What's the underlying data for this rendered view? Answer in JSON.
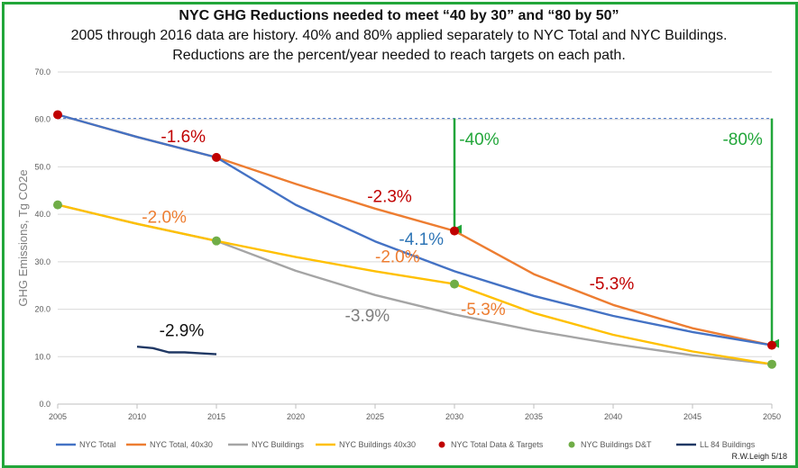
{
  "chart_data": {
    "type": "line",
    "title": "NYC GHG Reductions needed to meet “40 by 30” and “80 by 50”",
    "subtitle_lines": [
      "2005 through 2016 data are history. 40% and 80% applied separately to NYC Total and NYC Buildings.",
      "Reductions are the percent/year needed to reach targets on each path."
    ],
    "xlabel": "",
    "ylabel": "GHG Emissions, Tg CO2e",
    "xlim": [
      2005,
      2050
    ],
    "ylim": [
      0,
      70
    ],
    "xticks": [
      "2005",
      "2010",
      "2015",
      "2020",
      "2025",
      "2030",
      "2035",
      "2040",
      "2045",
      "2050"
    ],
    "yticks": [
      "0.0",
      "10.0",
      "20.0",
      "30.0",
      "40.0",
      "50.0",
      "60.0",
      "70.0"
    ],
    "grid": "horizontal",
    "legend_position": "bottom",
    "series": [
      {
        "name": "NYC Total",
        "kind": "line",
        "color": "#4472c4",
        "points": [
          [
            2005,
            61
          ],
          [
            2010,
            56.3
          ],
          [
            2015,
            52
          ],
          [
            2020,
            42
          ],
          [
            2025,
            34.3
          ],
          [
            2030,
            28
          ],
          [
            2035,
            22.8
          ],
          [
            2040,
            18.6
          ],
          [
            2045,
            15.2
          ],
          [
            2050,
            12.4
          ]
        ]
      },
      {
        "name": "NYC Total, 40x30",
        "kind": "line",
        "color": "#ed7d31",
        "points": [
          [
            2005,
            61
          ],
          [
            2010,
            56.3
          ],
          [
            2015,
            52
          ],
          [
            2020,
            46.4
          ],
          [
            2025,
            41.2
          ],
          [
            2030,
            36.5
          ],
          [
            2035,
            27.4
          ],
          [
            2040,
            20.9
          ],
          [
            2045,
            16
          ],
          [
            2050,
            12.4
          ]
        ]
      },
      {
        "name": "NYC Buildings",
        "kind": "line",
        "color": "#a5a5a5",
        "points": [
          [
            2005,
            42
          ],
          [
            2010,
            38
          ],
          [
            2015,
            34.4
          ],
          [
            2020,
            28.1
          ],
          [
            2025,
            23
          ],
          [
            2030,
            18.9
          ],
          [
            2035,
            15.5
          ],
          [
            2040,
            12.7
          ],
          [
            2045,
            10.3
          ],
          [
            2050,
            8.4
          ]
        ]
      },
      {
        "name": "NYC Buildings 40x30",
        "kind": "line",
        "color": "#ffc000",
        "points": [
          [
            2005,
            42
          ],
          [
            2010,
            38
          ],
          [
            2015,
            34.4
          ],
          [
            2020,
            31
          ],
          [
            2025,
            28
          ],
          [
            2030,
            25.3
          ],
          [
            2035,
            19.2
          ],
          [
            2040,
            14.6
          ],
          [
            2045,
            11.1
          ],
          [
            2050,
            8.4
          ]
        ]
      },
      {
        "name": "NYC Total Data & Targets",
        "kind": "marker",
        "color": "#c00000",
        "points": [
          [
            2005,
            61
          ],
          [
            2015,
            52
          ],
          [
            2030,
            36.5
          ],
          [
            2050,
            12.4
          ]
        ]
      },
      {
        "name": "NYC Buildings D&T",
        "kind": "marker",
        "color": "#70ad47",
        "points": [
          [
            2005,
            42
          ],
          [
            2015,
            34.4
          ],
          [
            2030,
            25.3
          ],
          [
            2050,
            8.4
          ]
        ]
      },
      {
        "name": "LL 84 Buildings",
        "kind": "line",
        "color": "#203864",
        "points": [
          [
            2010,
            12.1
          ],
          [
            2011,
            11.8
          ],
          [
            2012,
            10.9
          ],
          [
            2013,
            10.9
          ],
          [
            2014,
            10.7
          ],
          [
            2015,
            10.5
          ]
        ]
      }
    ],
    "reference_line": {
      "y": 60.2,
      "from": 2005,
      "to": 2050,
      "color": "#4472c4"
    },
    "arrows": [
      {
        "x": 2030,
        "from": 60.2,
        "to": 36.5,
        "color": "#22a63a"
      },
      {
        "x": 2050,
        "from": 60.2,
        "to": 12.4,
        "color": "#22a63a"
      }
    ],
    "annotations": [
      {
        "text": "-40%",
        "x": 2030.3,
        "y": 54.6,
        "color": "#22a63a",
        "size": 19
      },
      {
        "text": "-80%",
        "x": 2046.9,
        "y": 54.6,
        "color": "#22a63a",
        "size": 19
      },
      {
        "text": "-1.6%",
        "x": 2011.5,
        "y": 55.2,
        "color": "#c00000",
        "size": 19
      },
      {
        "text": "-2.3%",
        "x": 2024.5,
        "y": 42.6,
        "color": "#c00000",
        "size": 19
      },
      {
        "text": "-5.3%",
        "x": 2038.5,
        "y": 24.2,
        "color": "#c00000",
        "size": 19
      },
      {
        "text": "-4.1%",
        "x": 2026.5,
        "y": 33.6,
        "color": "#2e75b6",
        "size": 19
      },
      {
        "text": "-2.0%",
        "x": 2010.3,
        "y": 38.2,
        "color": "#ed7d31",
        "size": 19
      },
      {
        "text": "-2.0%",
        "x": 2025.0,
        "y": 29.9,
        "color": "#ed7d31",
        "size": 19
      },
      {
        "text": "-5.3%",
        "x": 2030.4,
        "y": 18.8,
        "color": "#ed7d31",
        "size": 19
      },
      {
        "text": "-3.9%",
        "x": 2023.1,
        "y": 17.5,
        "color": "#7f7f7f",
        "size": 19
      },
      {
        "text": "-2.9%",
        "x": 2011.4,
        "y": 14.3,
        "color": "#111111",
        "size": 19
      }
    ]
  },
  "signature": "R.W.Leigh 5/18"
}
